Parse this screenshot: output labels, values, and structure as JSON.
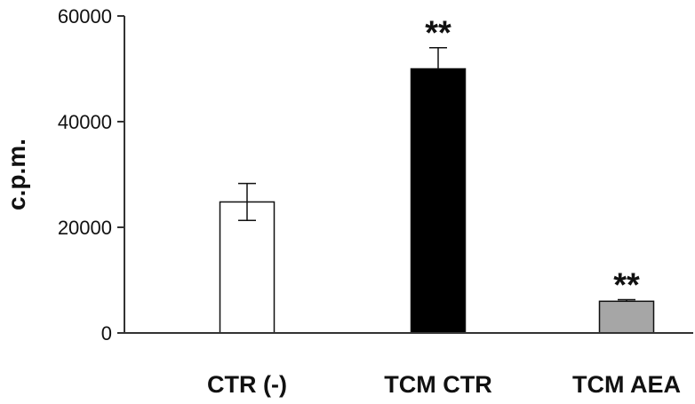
{
  "chart_data": {
    "type": "bar",
    "title": "",
    "xlabel": "",
    "ylabel": "c.p.m.",
    "ylim": [
      0,
      60000
    ],
    "yticks": [
      0,
      20000,
      40000,
      60000
    ],
    "yticks_label": [
      "0",
      "20000",
      "40000",
      "60000"
    ],
    "grid": false,
    "categories": [
      "CTR (-)",
      "TCM CTR",
      "TCM AEA"
    ],
    "values": [
      24800,
      50000,
      6000
    ],
    "errors": [
      3500,
      4000,
      300
    ],
    "annotations": [
      "",
      "**",
      "**"
    ],
    "colors": [
      "#ffffff",
      "#000000",
      "#a6a6a6"
    ]
  }
}
